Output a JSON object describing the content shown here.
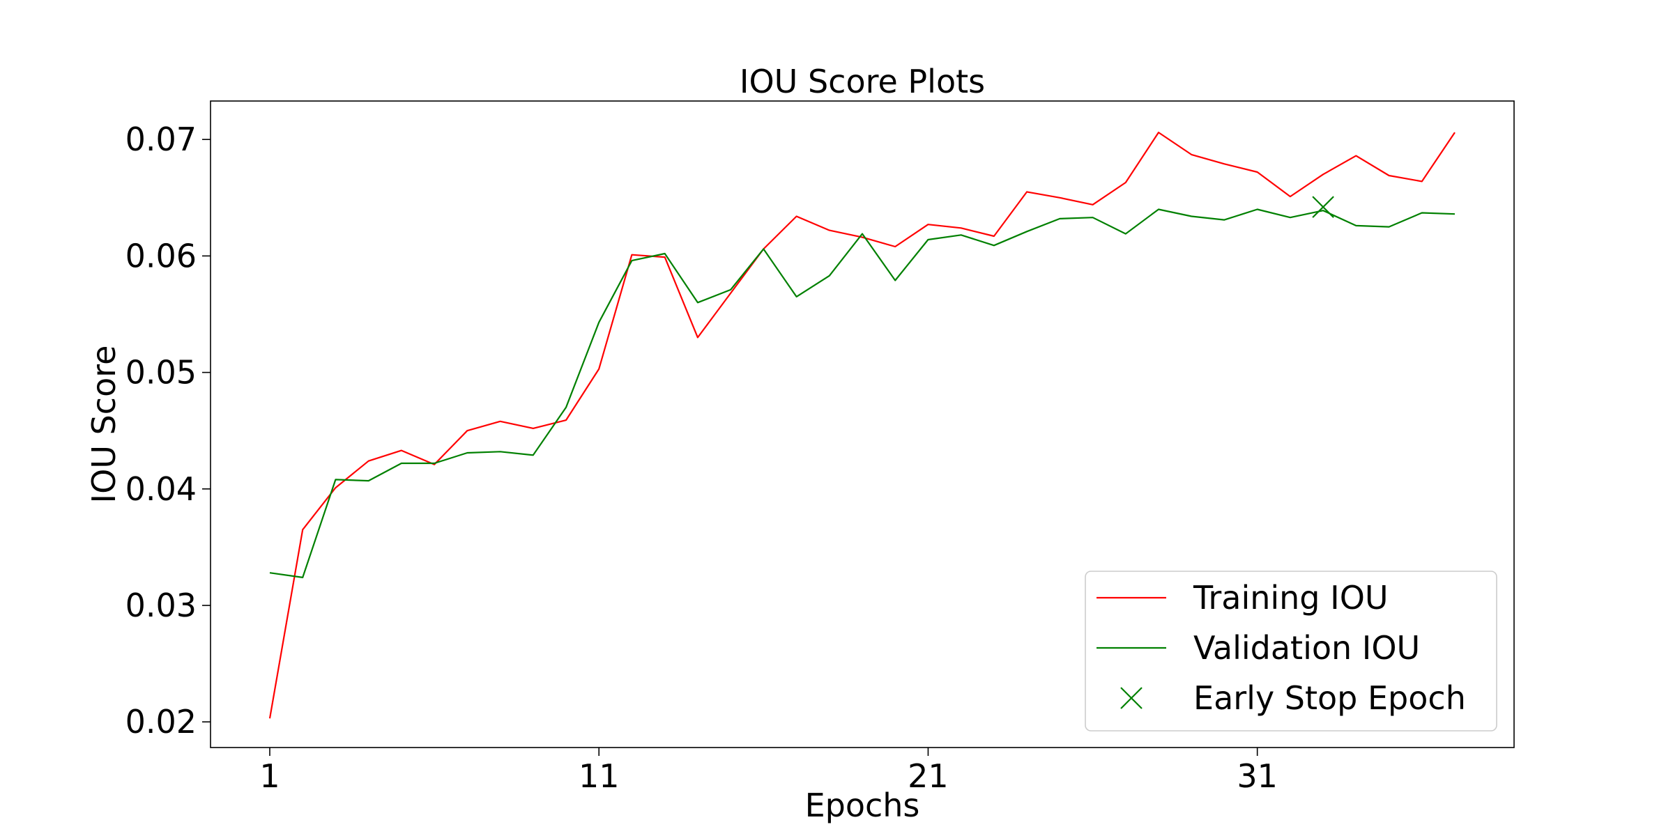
{
  "chart_data": {
    "type": "line",
    "title": "IOU Score Plots",
    "xlabel": "Epochs",
    "ylabel": "IOU Score",
    "xlim": [
      -0.8,
      38.8
    ],
    "ylim": [
      0.0178,
      0.0733
    ],
    "xticks": [
      1,
      11,
      21,
      31
    ],
    "yticks": [
      0.02,
      0.03,
      0.04,
      0.05,
      0.06,
      0.07
    ],
    "ytick_labels": [
      "0.02",
      "0.03",
      "0.04",
      "0.05",
      "0.06",
      "0.07"
    ],
    "grid": false,
    "legend_position": "lower-right",
    "x": [
      1,
      2,
      3,
      4,
      5,
      6,
      7,
      8,
      9,
      10,
      11,
      12,
      13,
      14,
      15,
      16,
      17,
      18,
      19,
      20,
      21,
      22,
      23,
      24,
      25,
      26,
      27,
      28,
      29,
      30,
      31,
      32,
      33,
      34,
      35,
      36,
      37
    ],
    "series": [
      {
        "name": "Training IOU",
        "color": "#ff0000",
        "values": [
          0.0203,
          0.0365,
          0.0401,
          0.0424,
          0.0433,
          0.0421,
          0.045,
          0.0458,
          0.0452,
          0.0459,
          0.0503,
          0.0601,
          0.0599,
          0.053,
          0.0568,
          0.0606,
          0.0634,
          0.0622,
          0.0616,
          0.0608,
          0.0627,
          0.0624,
          0.0617,
          0.0655,
          0.065,
          0.0644,
          0.0663,
          0.0706,
          0.0687,
          0.0679,
          0.0672,
          0.0651,
          0.067,
          0.0686,
          0.0669,
          0.0664,
          0.0706
        ]
      },
      {
        "name": "Validation IOU",
        "color": "#008000",
        "values": [
          0.0328,
          0.0324,
          0.0408,
          0.0407,
          0.0422,
          0.0422,
          0.0431,
          0.0432,
          0.0429,
          0.047,
          0.0543,
          0.0596,
          0.0602,
          0.056,
          0.0571,
          0.0606,
          0.0565,
          0.0583,
          0.0619,
          0.0579,
          0.0614,
          0.0618,
          0.0609,
          0.0621,
          0.0632,
          0.0633,
          0.0619,
          0.064,
          0.0634,
          0.0631,
          0.064,
          0.0633,
          0.0639,
          0.0626,
          0.0625,
          0.0637,
          0.0636
        ]
      }
    ],
    "markers": [
      {
        "name": "Early Stop Epoch",
        "x": 33,
        "y": 0.0642,
        "color": "#008000",
        "symbol": "x"
      }
    ]
  }
}
